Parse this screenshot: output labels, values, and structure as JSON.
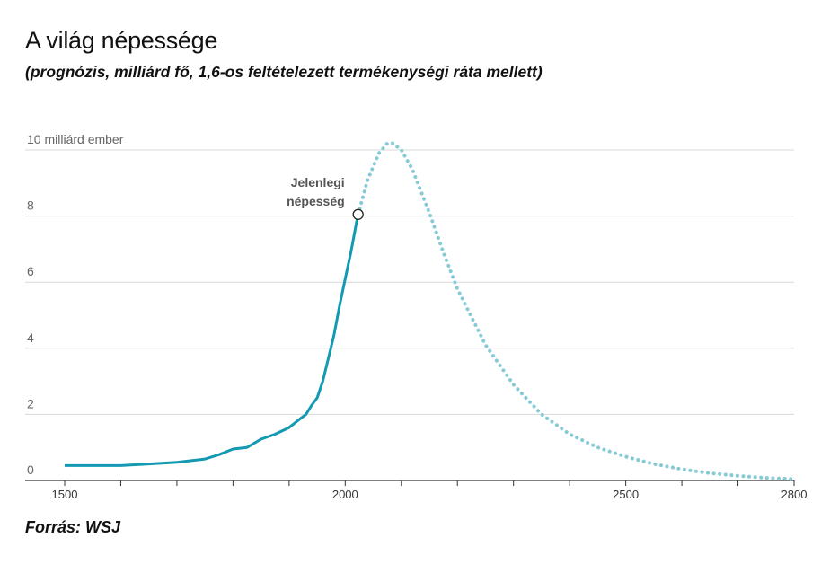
{
  "title": "A világ népessége",
  "subtitle": "(prognózis, milliárd fő, 1,6-os feltételezett termékenységi ráta mellett)",
  "source": "Forrás: WSJ",
  "chart_data": {
    "type": "line",
    "y_tick_labels": [
      {
        "value": 0,
        "label": "0"
      },
      {
        "value": 2,
        "label": "2"
      },
      {
        "value": 4,
        "label": "4"
      },
      {
        "value": 6,
        "label": "6"
      },
      {
        "value": 8,
        "label": "8"
      },
      {
        "value": 10,
        "label": "10 milliárd ember"
      }
    ],
    "x_tick_labels": [
      {
        "value": 1500,
        "label": "1500"
      },
      {
        "value": 2000,
        "label": "2000"
      },
      {
        "value": 2500,
        "label": "2500"
      },
      {
        "value": 2800,
        "label": "2800"
      }
    ],
    "xlim": [
      1500,
      2800
    ],
    "ylim": [
      0,
      10
    ],
    "grid": true,
    "annotation": {
      "line1": "Jelenlegi",
      "line2": "népesség",
      "x": 2023,
      "y": 8.05
    },
    "colors": {
      "historical": "#1499b3",
      "projection": "#86cad6",
      "grid": "#d9d9d9",
      "axis": "#333333"
    },
    "series": [
      {
        "style": "solid",
        "x": [
          1500,
          1600,
          1650,
          1700,
          1750,
          1775,
          1800,
          1825,
          1850,
          1875,
          1900,
          1920,
          1930,
          1940,
          1950,
          1960,
          1970,
          1980,
          1990,
          2000,
          2010,
          2020,
          2023
        ],
        "y": [
          0.45,
          0.45,
          0.5,
          0.55,
          0.65,
          0.78,
          0.95,
          1.0,
          1.25,
          1.4,
          1.6,
          1.87,
          2.0,
          2.27,
          2.5,
          3.0,
          3.7,
          4.4,
          5.3,
          6.1,
          6.9,
          7.8,
          8.05
        ]
      },
      {
        "style": "dotted",
        "x": [
          2023,
          2040,
          2060,
          2075,
          2085,
          2100,
          2120,
          2150,
          2175,
          2200,
          2250,
          2300,
          2350,
          2400,
          2450,
          2500,
          2550,
          2600,
          2650,
          2700,
          2750,
          2800
        ],
        "y": [
          8.05,
          9.1,
          9.9,
          10.2,
          10.2,
          10.0,
          9.4,
          8.1,
          6.9,
          5.8,
          4.1,
          2.9,
          2.0,
          1.4,
          1.0,
          0.72,
          0.5,
          0.34,
          0.22,
          0.14,
          0.08,
          0.04
        ]
      }
    ]
  }
}
